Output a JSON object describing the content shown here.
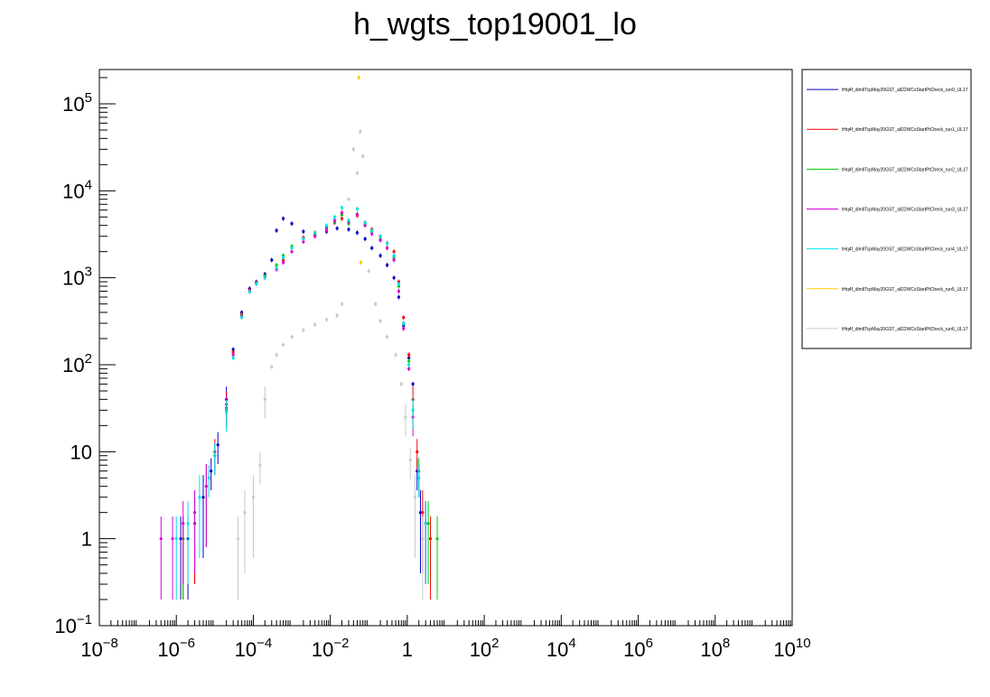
{
  "chart_data": {
    "type": "scatter",
    "title": "h_wgts_top19001_lo",
    "xscale": "log",
    "yscale": "log",
    "xlim": [
      1e-08,
      10000000000.0
    ],
    "ylim": [
      0.1,
      250000
    ],
    "x_ticks": [
      {
        "base": "10",
        "exp": "−8"
      },
      {
        "base": "10",
        "exp": "−6"
      },
      {
        "base": "10",
        "exp": "−4"
      },
      {
        "base": "10",
        "exp": "−2"
      },
      {
        "base": "1",
        "exp": ""
      },
      {
        "base": "10",
        "exp": "2"
      },
      {
        "base": "10",
        "exp": "4"
      },
      {
        "base": "10",
        "exp": "6"
      },
      {
        "base": "10",
        "exp": "8"
      },
      {
        "base": "10",
        "exp": "10"
      }
    ],
    "x_tick_values": [
      1e-08,
      1e-06,
      0.0001,
      0.01,
      1,
      100.0,
      10000.0,
      1000000.0,
      100000000.0,
      10000000000.0
    ],
    "y_ticks": [
      {
        "base": "10",
        "exp": "−1"
      },
      {
        "base": "1",
        "exp": ""
      },
      {
        "base": "10",
        "exp": ""
      },
      {
        "base": "10",
        "exp": "2"
      },
      {
        "base": "10",
        "exp": "3"
      },
      {
        "base": "10",
        "exp": "4"
      },
      {
        "base": "10",
        "exp": "5"
      }
    ],
    "y_tick_values": [
      0.1,
      1,
      10,
      100,
      1000,
      10000,
      100000
    ],
    "legend_placement": "right",
    "series": [
      {
        "name": "tHq4f_dimlITcpMay20GST_all22WCsStartPtCheck_run0_UL17",
        "color": "#0000cc",
        "points": [
          [
            1.3e-06,
            1
          ],
          [
            2e-06,
            1
          ],
          [
            3e-06,
            1.5
          ],
          [
            5e-06,
            3
          ],
          [
            8e-06,
            6
          ],
          [
            1.2e-05,
            12
          ],
          [
            2e-05,
            40
          ],
          [
            3e-05,
            150
          ],
          [
            5e-05,
            400
          ],
          [
            8e-05,
            750
          ],
          [
            0.00012,
            900
          ],
          [
            0.0002,
            1100
          ],
          [
            0.0003,
            1600
          ],
          [
            0.0004,
            3500
          ],
          [
            0.0006,
            4800
          ],
          [
            0.001,
            4200
          ],
          [
            0.002,
            3400
          ],
          [
            0.004,
            3100
          ],
          [
            0.008,
            3400
          ],
          [
            0.015,
            3700
          ],
          [
            0.03,
            3600
          ],
          [
            0.05,
            3300
          ],
          [
            0.08,
            2800
          ],
          [
            0.12,
            2200
          ],
          [
            0.2,
            1800
          ],
          [
            0.3,
            1400
          ],
          [
            0.45,
            1000
          ],
          [
            0.6,
            600
          ],
          [
            0.8,
            280
          ],
          [
            1.1,
            120
          ],
          [
            1.4,
            60
          ],
          [
            1.8,
            6
          ],
          [
            2.2,
            2
          ],
          [
            3,
            1.5
          ]
        ]
      },
      {
        "name": "tHq4f_dimlITcpMay20GST_all22WCsStartPtCheck_run1_UL17",
        "color": "#ff0000",
        "points": [
          [
            1.5e-06,
            1
          ],
          [
            3e-06,
            1.5
          ],
          [
            6e-06,
            4
          ],
          [
            1e-05,
            10
          ],
          [
            2e-05,
            35
          ],
          [
            3e-05,
            140
          ],
          [
            5e-05,
            380
          ],
          [
            8e-05,
            720
          ],
          [
            0.00012,
            880
          ],
          [
            0.0002,
            1050
          ],
          [
            0.0004,
            1300
          ],
          [
            0.0006,
            1600
          ],
          [
            0.001,
            2200
          ],
          [
            0.002,
            2900
          ],
          [
            0.004,
            3300
          ],
          [
            0.008,
            3800
          ],
          [
            0.013,
            4300
          ],
          [
            0.02,
            4800
          ],
          [
            0.03,
            4300
          ],
          [
            0.05,
            5200
          ],
          [
            0.08,
            4300
          ],
          [
            0.12,
            3600
          ],
          [
            0.2,
            3000
          ],
          [
            0.3,
            2500
          ],
          [
            0.45,
            2000
          ],
          [
            0.6,
            900
          ],
          [
            0.8,
            350
          ],
          [
            1.1,
            130
          ],
          [
            1.4,
            40
          ],
          [
            1.8,
            10
          ],
          [
            2.5,
            2
          ],
          [
            4,
            1
          ]
        ]
      },
      {
        "name": "tHq4f_dimlITcpMay20GST_all22WCsStartPtCheck_run2_UL17",
        "color": "#00cc00",
        "points": [
          [
            1.5e-06,
            1
          ],
          [
            3e-06,
            2
          ],
          [
            6e-06,
            4
          ],
          [
            1e-05,
            9
          ],
          [
            2e-05,
            30
          ],
          [
            3e-05,
            130
          ],
          [
            5e-05,
            370
          ],
          [
            8e-05,
            700
          ],
          [
            0.00012,
            870
          ],
          [
            0.0002,
            1050
          ],
          [
            0.0004,
            1400
          ],
          [
            0.0006,
            1800
          ],
          [
            0.001,
            2300
          ],
          [
            0.002,
            2800
          ],
          [
            0.004,
            3200
          ],
          [
            0.008,
            3600
          ],
          [
            0.013,
            4400
          ],
          [
            0.02,
            5300
          ],
          [
            0.03,
            4200
          ],
          [
            0.05,
            5400
          ],
          [
            0.08,
            4100
          ],
          [
            0.12,
            3400
          ],
          [
            0.2,
            2800
          ],
          [
            0.3,
            2200
          ],
          [
            0.45,
            1700
          ],
          [
            0.6,
            800
          ],
          [
            0.8,
            300
          ],
          [
            1.1,
            110
          ],
          [
            1.4,
            30
          ],
          [
            2,
            6
          ],
          [
            3.5,
            1.5
          ],
          [
            6,
            1
          ]
        ]
      },
      {
        "name": "tHq4f_dimlITcpMay20GST_all22WCsStartPtCheck_run3_UL17",
        "color": "#dd00dd",
        "points": [
          [
            4e-07,
            1
          ],
          [
            8e-07,
            1
          ],
          [
            1.5e-06,
            1.5
          ],
          [
            3e-06,
            2
          ],
          [
            6e-06,
            4
          ],
          [
            1e-05,
            9
          ],
          [
            2e-05,
            32
          ],
          [
            3e-05,
            130
          ],
          [
            5e-05,
            360
          ],
          [
            8e-05,
            700
          ],
          [
            0.00012,
            860
          ],
          [
            0.0002,
            1000
          ],
          [
            0.0004,
            1250
          ],
          [
            0.0006,
            1500
          ],
          [
            0.001,
            2000
          ],
          [
            0.002,
            2600
          ],
          [
            0.004,
            3000
          ],
          [
            0.008,
            3500
          ],
          [
            0.013,
            4600
          ],
          [
            0.02,
            5600
          ],
          [
            0.03,
            4400
          ],
          [
            0.05,
            5300
          ],
          [
            0.08,
            4000
          ],
          [
            0.12,
            3200
          ],
          [
            0.2,
            2700
          ],
          [
            0.3,
            2200
          ],
          [
            0.45,
            1600
          ],
          [
            0.6,
            700
          ],
          [
            0.8,
            260
          ],
          [
            1.1,
            90
          ],
          [
            1.4,
            25
          ],
          [
            2,
            5
          ],
          [
            3,
            1.5
          ]
        ]
      },
      {
        "name": "tHq4f_dimlITcpMay20GST_all22WCsStartPtCheck_run4_UL17",
        "color": "#00e5e5",
        "points": [
          [
            1e-06,
            1
          ],
          [
            2e-06,
            1.5
          ],
          [
            4e-06,
            3
          ],
          [
            7e-06,
            5
          ],
          [
            1e-05,
            9
          ],
          [
            2e-05,
            28
          ],
          [
            3e-05,
            120
          ],
          [
            5e-05,
            350
          ],
          [
            8e-05,
            690
          ],
          [
            0.00012,
            850
          ],
          [
            0.0002,
            1000
          ],
          [
            0.0004,
            1300
          ],
          [
            0.0006,
            1700
          ],
          [
            0.001,
            2200
          ],
          [
            0.002,
            2800
          ],
          [
            0.004,
            3300
          ],
          [
            0.008,
            4000
          ],
          [
            0.013,
            5000
          ],
          [
            0.02,
            6400
          ],
          [
            0.03,
            4600
          ],
          [
            0.05,
            6200
          ],
          [
            0.08,
            4300
          ],
          [
            0.12,
            3500
          ],
          [
            0.2,
            3000
          ],
          [
            0.3,
            2500
          ],
          [
            0.45,
            1800
          ],
          [
            0.6,
            850
          ],
          [
            0.8,
            300
          ],
          [
            1.1,
            100
          ],
          [
            1.4,
            30
          ],
          [
            2,
            5
          ],
          [
            3,
            1.5
          ]
        ]
      },
      {
        "name": "tHq4f_dimlITcpMay20GST_all22WCsStartPtCheck_run5_UL17",
        "color": "#ffcc00",
        "points": [
          [
            0.055,
            200000
          ],
          [
            0.062,
            1500
          ]
        ]
      },
      {
        "name": "tHq4f_dimlITcpMay20GST_all22WCsStartPtCheck_run6_UL17",
        "color": "#c8c8c8",
        "points": [
          [
            4e-05,
            1
          ],
          [
            6e-05,
            2
          ],
          [
            0.0001,
            3
          ],
          [
            0.00015,
            7
          ],
          [
            0.0002,
            40
          ],
          [
            0.0003,
            95
          ],
          [
            0.0004,
            130
          ],
          [
            0.0006,
            170
          ],
          [
            0.001,
            210
          ],
          [
            0.002,
            250
          ],
          [
            0.004,
            290
          ],
          [
            0.008,
            330
          ],
          [
            0.015,
            370
          ],
          [
            0.02,
            500
          ],
          [
            0.03,
            8000
          ],
          [
            0.04,
            30000
          ],
          [
            0.05,
            16000
          ],
          [
            0.06,
            48000
          ],
          [
            0.07,
            25000
          ],
          [
            0.1,
            1200
          ],
          [
            0.15,
            500
          ],
          [
            0.2,
            320
          ],
          [
            0.3,
            210
          ],
          [
            0.5,
            130
          ],
          [
            0.7,
            60
          ],
          [
            0.9,
            25
          ],
          [
            1.2,
            8
          ],
          [
            1.6,
            3
          ],
          [
            2.5,
            1
          ]
        ]
      }
    ]
  }
}
